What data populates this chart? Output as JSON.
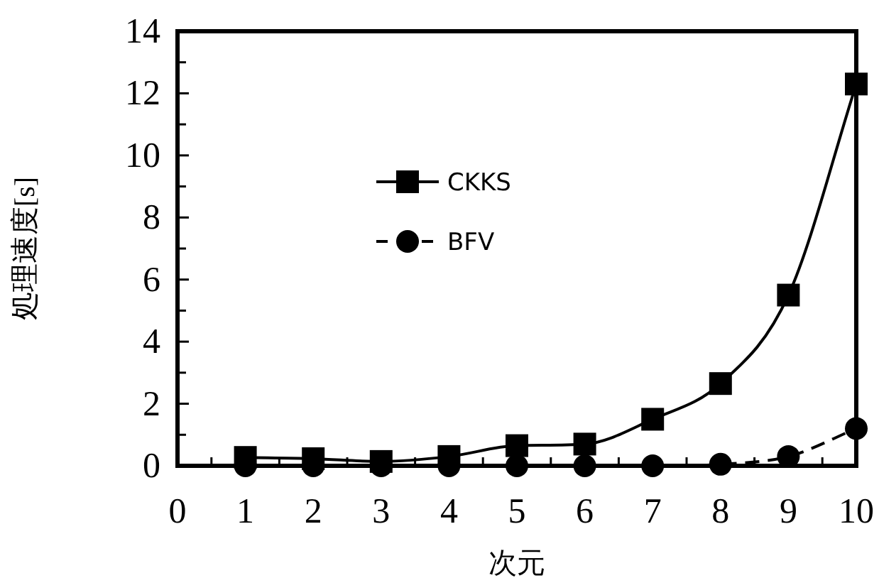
{
  "chart_data": {
    "type": "line",
    "xlabel": "次元",
    "ylabel": "処理速度[s]",
    "x": [
      1,
      2,
      3,
      4,
      5,
      6,
      7,
      8,
      9,
      10
    ],
    "xlim": [
      0,
      10
    ],
    "xticks": [
      0,
      {
        "value": 0.5,
        "label": null
      },
      1,
      {
        "value": 1.5,
        "label": null
      },
      2,
      {
        "value": 2.5,
        "label": null
      },
      3,
      {
        "value": 3.5,
        "label": null
      },
      4,
      {
        "value": 4.5,
        "label": null
      },
      5,
      {
        "value": 5.5,
        "label": null
      },
      6,
      {
        "value": 6.5,
        "label": null
      },
      7,
      {
        "value": 7.5,
        "label": null
      },
      8,
      {
        "value": 8.5,
        "label": null
      },
      9,
      {
        "value": 9.5,
        "label": null
      },
      10
    ],
    "ylim": [
      0,
      14
    ],
    "yticks": [
      0,
      {
        "value": 1,
        "label": null
      },
      2,
      {
        "value": 3,
        "label": null
      },
      4,
      {
        "value": 5,
        "label": null
      },
      6,
      {
        "value": 7,
        "label": null
      },
      8,
      {
        "value": 9,
        "label": null
      },
      10,
      {
        "value": 11,
        "label": null
      },
      12,
      {
        "value": 13,
        "label": null
      },
      14
    ],
    "grid": false,
    "legend": "top left",
    "series": [
      {
        "name": "CKKS",
        "color": "#000000",
        "marker": "square",
        "line_style": "solid",
        "values": [
          0.27,
          0.23,
          0.14,
          0.3,
          0.65,
          0.7,
          1.5,
          2.65,
          5.5,
          12.3
        ]
      },
      {
        "name": "BFV",
        "color": "#000000",
        "marker": "circle",
        "line_style": "dashed",
        "values": [
          0,
          0,
          0,
          0,
          0,
          0,
          0,
          0.05,
          0.3,
          1.2
        ]
      }
    ]
  }
}
